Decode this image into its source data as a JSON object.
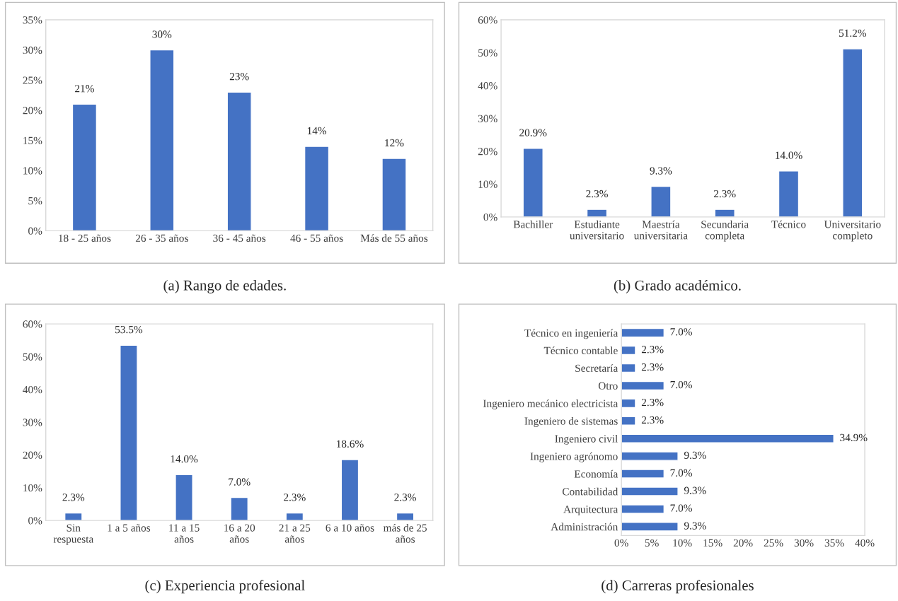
{
  "chart_data": [
    {
      "type": "bar",
      "title": "(a) Rango de edades.",
      "categories": [
        "18 - 25 años",
        "26 - 35 años",
        "36 - 45 años",
        "46 - 55 años",
        "Más de 55 años"
      ],
      "values": [
        21,
        30,
        23,
        14,
        12
      ],
      "value_labels": [
        "21%",
        "30%",
        "23%",
        "14%",
        "12%"
      ],
      "color": "#4472c4",
      "ylim": [
        0,
        35
      ],
      "yticks": [
        {
          "value": 0,
          "label": "0%"
        },
        {
          "value": 5,
          "label": "5%"
        },
        {
          "value": 10,
          "label": "10%"
        },
        {
          "value": 15,
          "label": "15%"
        },
        {
          "value": 20,
          "label": "20%"
        },
        {
          "value": 25,
          "label": "25%"
        },
        {
          "value": 30,
          "label": "30%"
        },
        {
          "value": 35,
          "label": "35%"
        }
      ]
    },
    {
      "type": "bar",
      "title": "(b) Grado académico.",
      "categories": [
        "Bachiller",
        "Estudiante\nuniversitario",
        "Maestría\nuniversitaria",
        "Secundaria\ncompleta",
        "Técnico",
        "Universitario\ncompleto"
      ],
      "values": [
        20.9,
        2.3,
        9.3,
        2.3,
        14.0,
        51.2
      ],
      "value_labels": [
        "20.9%",
        "2.3%",
        "9.3%",
        "2.3%",
        "14.0%",
        "51.2%"
      ],
      "color": "#4472c4",
      "ylim": [
        0,
        60
      ],
      "yticks": [
        {
          "value": 0,
          "label": "0%"
        },
        {
          "value": 10,
          "label": "10%"
        },
        {
          "value": 20,
          "label": "20%"
        },
        {
          "value": 30,
          "label": "30%"
        },
        {
          "value": 40,
          "label": "40%"
        },
        {
          "value": 50,
          "label": "50%"
        },
        {
          "value": 60,
          "label": "60%"
        }
      ]
    },
    {
      "type": "bar",
      "title": "(c) Experiencia profesional",
      "categories": [
        "Sin\nrespuesta",
        "1 a 5 años",
        "11 a 15\naños",
        "16 a 20\naños",
        "21 a 25\naños",
        "6 a 10 años",
        "más de 25\naños"
      ],
      "values": [
        2.3,
        53.5,
        14.0,
        7.0,
        2.3,
        18.6,
        2.3
      ],
      "value_labels": [
        "2.3%",
        "53.5%",
        "14.0%",
        "7.0%",
        "2.3%",
        "18.6%",
        "2.3%"
      ],
      "color": "#4472c4",
      "ylim": [
        0,
        60
      ],
      "yticks": [
        {
          "value": 0,
          "label": "0%"
        },
        {
          "value": 10,
          "label": "10%"
        },
        {
          "value": 20,
          "label": "20%"
        },
        {
          "value": 30,
          "label": "30%"
        },
        {
          "value": 40,
          "label": "40%"
        },
        {
          "value": 50,
          "label": "50%"
        },
        {
          "value": 60,
          "label": "60%"
        }
      ]
    },
    {
      "type": "bar",
      "orientation": "horizontal",
      "title": "(d) Carreras profesionales",
      "categories": [
        "Técnico en ingeniería",
        "Técnico contable",
        "Secretaría",
        "Otro",
        "Ingeniero mecánico electricista",
        "Ingeniero de sistemas",
        "Ingeniero civil",
        "Ingeniero agrónomo",
        "Economía",
        "Contabilidad",
        "Arquitectura",
        "Administración"
      ],
      "values": [
        7.0,
        2.3,
        2.3,
        7.0,
        2.3,
        2.3,
        34.9,
        9.3,
        7.0,
        9.3,
        7.0,
        9.3
      ],
      "value_labels": [
        "7.0%",
        "2.3%",
        "2.3%",
        "7.0%",
        "2.3%",
        "2.3%",
        "34.9%",
        "9.3%",
        "7.0%",
        "9.3%",
        "7.0%",
        "9.3%"
      ],
      "color": "#4472c4",
      "xlim": [
        0,
        40
      ],
      "xticks": [
        {
          "value": 0,
          "label": "0%"
        },
        {
          "value": 5,
          "label": "5%"
        },
        {
          "value": 10,
          "label": "10%"
        },
        {
          "value": 15,
          "label": "15%"
        },
        {
          "value": 20,
          "label": "20%"
        },
        {
          "value": 25,
          "label": "25%"
        },
        {
          "value": 30,
          "label": "30%"
        },
        {
          "value": 35,
          "label": "35%"
        },
        {
          "value": 40,
          "label": "40%"
        }
      ]
    }
  ]
}
